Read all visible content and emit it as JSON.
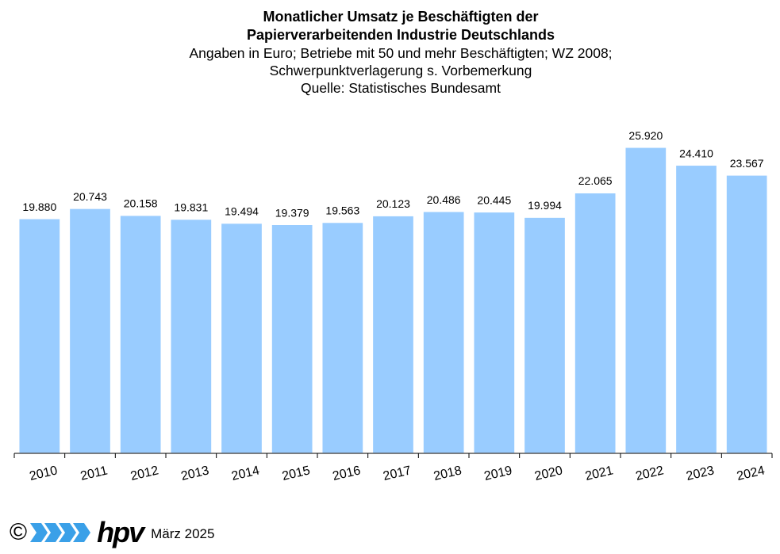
{
  "chart_data": {
    "type": "bar",
    "title": [
      "Monatlicher Umsatz je Beschäftigten der",
      "Papierverarbeitenden Industrie Deutschlands"
    ],
    "subtitle": [
      "Angaben  in Euro; Betriebe mit 50 und mehr Beschäftigten; WZ 2008;",
      "Schwerpunktverlagerung  s. Vorbemerkung",
      "Quelle:  Statistisches Bundesamt"
    ],
    "categories": [
      "2010",
      "2011",
      "2012",
      "2013",
      "2014",
      "2015",
      "2016",
      "2017",
      "2018",
      "2019",
      "2020",
      "2021",
      "2022",
      "2023",
      "2024"
    ],
    "values": [
      19880,
      20743,
      20158,
      19831,
      19494,
      19379,
      19563,
      20123,
      20486,
      20445,
      19994,
      22065,
      25920,
      24410,
      23567
    ],
    "value_labels": [
      "19.880",
      "20.743",
      "20.158",
      "19.831",
      "19.494",
      "19.379",
      "19.563",
      "20.123",
      "20.486",
      "20.445",
      "19.994",
      "22.065",
      "25.920",
      "24.410",
      "23.567"
    ],
    "ylim": [
      0,
      30000
    ],
    "grid": false,
    "bar_color": "#99ccff"
  },
  "footer": {
    "copyright": "©",
    "logo_text": "hpv",
    "date": "März 2025"
  }
}
